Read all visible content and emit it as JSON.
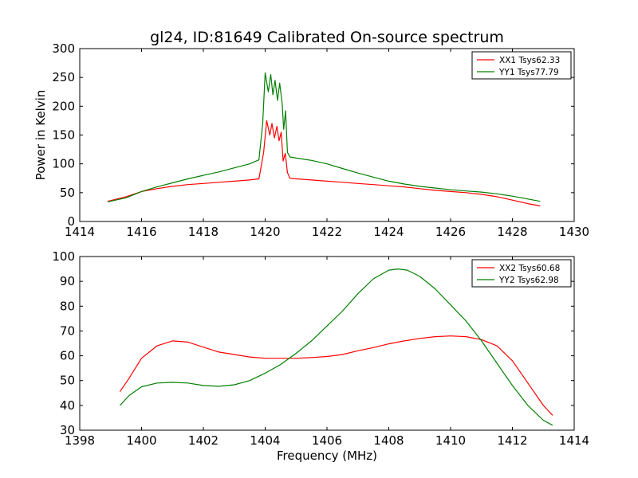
{
  "title": "gl24, ID:81649 Calibrated On-source spectrum",
  "chart_data": [
    {
      "type": "line",
      "ylabel": "Power in Kelvin",
      "xlabel": "",
      "xlim": [
        1414,
        1430
      ],
      "ylim": [
        0,
        300
      ],
      "xticks": [
        1414,
        1416,
        1418,
        1420,
        1422,
        1424,
        1426,
        1428,
        1430
      ],
      "yticks": [
        0,
        50,
        100,
        150,
        200,
        250,
        300
      ],
      "legend_position": "top-right",
      "series": [
        {
          "name": "XX1 Tsys62.33",
          "color": "#ff0000",
          "x": [
            1414.9,
            1415.5,
            1416.0,
            1416.5,
            1417.0,
            1417.5,
            1418.0,
            1418.5,
            1419.0,
            1419.5,
            1419.8,
            1419.95,
            1420.05,
            1420.15,
            1420.22,
            1420.3,
            1420.38,
            1420.45,
            1420.52,
            1420.58,
            1420.65,
            1420.72,
            1420.8,
            1421.0,
            1421.5,
            1422.0,
            1422.5,
            1423.0,
            1423.5,
            1424.0,
            1424.5,
            1425.0,
            1425.5,
            1426.0,
            1426.5,
            1427.0,
            1427.5,
            1428.0,
            1428.5,
            1428.9
          ],
          "y": [
            35,
            43,
            52,
            57,
            61,
            64,
            66,
            68,
            70,
            72,
            74,
            120,
            175,
            150,
            170,
            145,
            165,
            140,
            155,
            105,
            118,
            85,
            75,
            74,
            72,
            70,
            68,
            66,
            64,
            62,
            60,
            57,
            54,
            52,
            50,
            47,
            43,
            37,
            31,
            27
          ]
        },
        {
          "name": "YY1 Tsys77.79",
          "color": "#008000",
          "x": [
            1414.9,
            1415.5,
            1416.0,
            1416.5,
            1417.0,
            1417.5,
            1418.0,
            1418.5,
            1419.0,
            1419.5,
            1419.8,
            1419.92,
            1420.0,
            1420.1,
            1420.18,
            1420.25,
            1420.32,
            1420.4,
            1420.47,
            1420.55,
            1420.6,
            1420.66,
            1420.72,
            1420.8,
            1421.0,
            1421.5,
            1422.0,
            1422.5,
            1423.0,
            1423.5,
            1424.0,
            1424.5,
            1425.0,
            1425.5,
            1426.0,
            1426.5,
            1427.0,
            1427.5,
            1428.0,
            1428.5,
            1428.9
          ],
          "y": [
            34,
            41,
            52,
            60,
            67,
            74,
            80,
            86,
            93,
            100,
            107,
            170,
            258,
            225,
            255,
            220,
            245,
            210,
            240,
            205,
            160,
            192,
            120,
            112,
            110,
            106,
            100,
            92,
            84,
            77,
            70,
            65,
            61,
            58,
            55,
            53,
            51,
            48,
            44,
            39,
            35
          ]
        }
      ]
    },
    {
      "type": "line",
      "ylabel": "",
      "xlabel": "Frequency (MHz)",
      "xlim": [
        1398,
        1414
      ],
      "ylim": [
        30,
        100
      ],
      "xticks": [
        1398,
        1400,
        1402,
        1404,
        1406,
        1408,
        1410,
        1412,
        1414
      ],
      "yticks": [
        30,
        40,
        50,
        60,
        70,
        80,
        90,
        100
      ],
      "legend_position": "top-right",
      "series": [
        {
          "name": "XX2 Tsys60.68",
          "color": "#ff0000",
          "x": [
            1399.3,
            1399.6,
            1400.0,
            1400.5,
            1401.0,
            1401.5,
            1402.0,
            1402.5,
            1403.0,
            1403.5,
            1404.0,
            1404.5,
            1405.0,
            1405.5,
            1406.0,
            1406.5,
            1407.0,
            1407.5,
            1408.0,
            1408.5,
            1409.0,
            1409.5,
            1410.0,
            1410.5,
            1411.0,
            1411.5,
            1412.0,
            1412.5,
            1413.0,
            1413.3
          ],
          "y": [
            45.5,
            51,
            59,
            64,
            66,
            65.5,
            63.5,
            61.5,
            60.5,
            59.5,
            59,
            59,
            59,
            59.3,
            59.7,
            60.5,
            62,
            63.3,
            64.8,
            66,
            67,
            67.7,
            68,
            67.7,
            66.5,
            64,
            58,
            49,
            40,
            36
          ]
        },
        {
          "name": "YY2 Tsys62.98",
          "color": "#008000",
          "x": [
            1399.3,
            1399.6,
            1400.0,
            1400.5,
            1401.0,
            1401.5,
            1402.0,
            1402.5,
            1403.0,
            1403.5,
            1404.0,
            1404.5,
            1405.0,
            1405.5,
            1406.0,
            1406.5,
            1407.0,
            1407.5,
            1408.0,
            1408.3,
            1408.6,
            1409.0,
            1409.5,
            1410.0,
            1410.5,
            1411.0,
            1411.5,
            1412.0,
            1412.5,
            1413.0,
            1413.3
          ],
          "y": [
            40,
            44,
            47.5,
            49,
            49.3,
            49,
            48,
            47.7,
            48.3,
            50,
            53,
            56.5,
            61,
            66,
            72,
            78,
            85,
            91,
            94.5,
            95,
            94.5,
            92,
            87,
            80.5,
            74,
            66,
            57,
            48,
            40,
            34,
            32
          ]
        }
      ]
    }
  ]
}
